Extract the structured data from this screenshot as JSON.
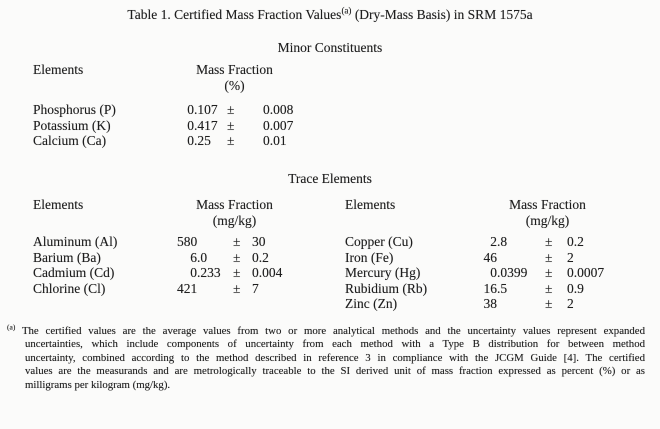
{
  "page": {
    "title": {
      "text_before_sup": "Table 1.  Certified Mass Fraction Values",
      "superscript": "(a)",
      "text_after_sup": " (Dry-Mass Basis) in SRM 1575a"
    }
  },
  "symbols": {
    "plus_minus": "±"
  },
  "minor_constituents": {
    "heading": "Minor Constituents",
    "columns": {
      "elements": "Elements",
      "mass_fraction": "Mass Fraction",
      "unit": "(%)"
    },
    "rows": [
      {
        "element": "Phosphorus (P)",
        "value_int": "0",
        "value_frac": ".107",
        "uncertainty": "0.008"
      },
      {
        "element": "Potassium (K)",
        "value_int": "0",
        "value_frac": ".417",
        "uncertainty": "0.007"
      },
      {
        "element": "Calcium (Ca)",
        "value_int": "0",
        "value_frac": ".25",
        "uncertainty": "0.01"
      }
    ]
  },
  "trace_elements": {
    "heading": "Trace Elements",
    "left": {
      "columns": {
        "elements": "Elements",
        "mass_fraction": "Mass Fraction",
        "unit": "(mg/kg)"
      },
      "rows": [
        {
          "element": "Aluminum (Al)",
          "value_int": "580",
          "value_frac": "",
          "uncertainty": "30"
        },
        {
          "element": "Barium (Ba)",
          "value_int": "6",
          "value_frac": ".0",
          "uncertainty": "0.2"
        },
        {
          "element": "Cadmium (Cd)",
          "value_int": "0",
          "value_frac": ".233",
          "uncertainty": "0.004"
        },
        {
          "element": "Chlorine (Cl)",
          "value_int": "421",
          "value_frac": "",
          "uncertainty": "7"
        }
      ]
    },
    "right": {
      "columns": {
        "elements": "Elements",
        "mass_fraction": "Mass Fraction",
        "unit": "(mg/kg)"
      },
      "rows": [
        {
          "element": "Copper (Cu)",
          "value_int": "2",
          "value_frac": ".8",
          "uncertainty": "0.2"
        },
        {
          "element": "Iron (Fe)",
          "value_int": "46",
          "value_frac": "",
          "uncertainty": "2"
        },
        {
          "element": "Mercury (Hg)",
          "value_int": "0",
          "value_frac": ".0399",
          "uncertainty": "0.0007"
        },
        {
          "element": "Rubidium (Rb)",
          "value_int": "16",
          "value_frac": ".5",
          "uncertainty": "0.9"
        },
        {
          "element": "Zinc (Zn)",
          "value_int": "38",
          "value_frac": "",
          "uncertainty": "2"
        }
      ]
    }
  },
  "footnote": {
    "marker": "(a)",
    "lines": [
      "The certified values are the average values from two or more analytical methods and the uncertainty values represent expanded",
      "uncertainties, which include components of uncertainty from each method with a Type B distribution for between method",
      "uncertainty, combined according to the method described in reference 3 in compliance with the JCGM Guide [4].  The certified",
      "values are the measurands and are metrologically traceable to the SI derived unit of mass fraction expressed as percent (%) or as",
      "milligrams per kilogram (mg/kg)."
    ]
  }
}
